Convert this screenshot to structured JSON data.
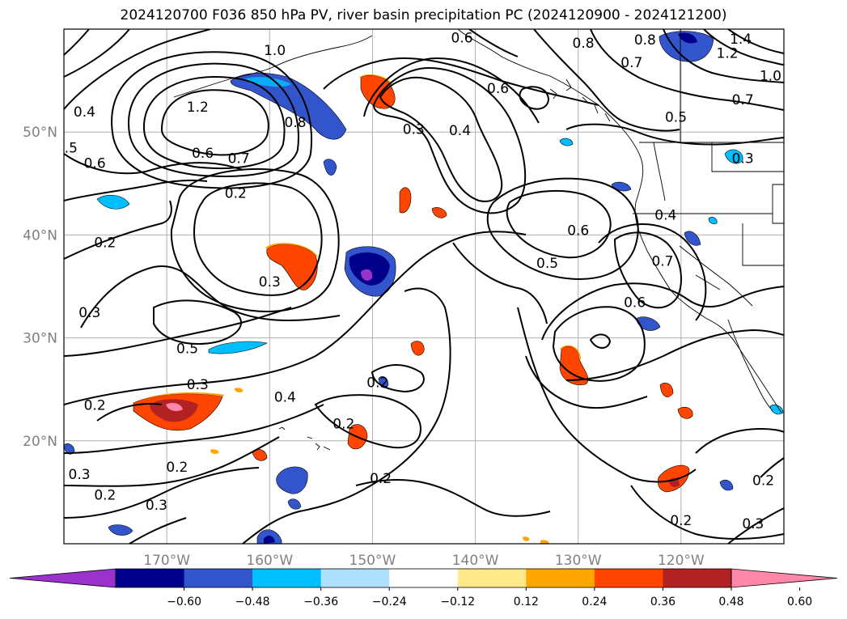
{
  "title": "2024120700 F036 850 hPa PV, river basin precipitation PC (2024120900 - 2024121200)",
  "map": {
    "lon_range": [
      -180,
      -110
    ],
    "lat_range": [
      10,
      60
    ],
    "lat_ticks": [
      {
        "value": 50,
        "label": "50°N"
      },
      {
        "value": 40,
        "label": "40°N"
      },
      {
        "value": 30,
        "label": "30°N"
      },
      {
        "value": 20,
        "label": "20°N"
      }
    ],
    "lon_ticks": [
      {
        "value": -170,
        "label": "170°W"
      },
      {
        "value": -160,
        "label": "160°W"
      },
      {
        "value": -150,
        "label": "150°W"
      },
      {
        "value": -140,
        "label": "140°W"
      },
      {
        "value": -130,
        "label": "130°W"
      },
      {
        "value": -120,
        "label": "120°W"
      }
    ],
    "grid": true
  },
  "contour_labels": [
    {
      "text": "1.0",
      "lon": -159.5,
      "lat": 57.5
    },
    {
      "text": "1.2",
      "lon": -167,
      "lat": 52.0
    },
    {
      "text": "0.8",
      "lon": -157.5,
      "lat": 50.5
    },
    {
      "text": "0.4",
      "lon": -178,
      "lat": 51.5
    },
    {
      "text": ".5",
      "lon": -179.3,
      "lat": 48.0
    },
    {
      "text": "0.6",
      "lon": -177,
      "lat": 46.5
    },
    {
      "text": "0.6",
      "lon": -166.5,
      "lat": 47.5
    },
    {
      "text": "0.7",
      "lon": -163,
      "lat": 47.0
    },
    {
      "text": "0.2",
      "lon": -163.3,
      "lat": 43.6
    },
    {
      "text": "0.2",
      "lon": -176,
      "lat": 38.8
    },
    {
      "text": "0.3",
      "lon": -177.5,
      "lat": 32.0
    },
    {
      "text": "0.3",
      "lon": -160,
      "lat": 35.0
    },
    {
      "text": "0.5",
      "lon": -168,
      "lat": 28.5
    },
    {
      "text": "0.3",
      "lon": -167,
      "lat": 25.0
    },
    {
      "text": "0.2",
      "lon": -177,
      "lat": 23.0
    },
    {
      "text": "0.4",
      "lon": -158.5,
      "lat": 23.8
    },
    {
      "text": "0.2",
      "lon": -149.5,
      "lat": 25.2
    },
    {
      "text": "0.2",
      "lon": -152.8,
      "lat": 21.2
    },
    {
      "text": "0.2",
      "lon": -169,
      "lat": 17.0
    },
    {
      "text": "0.3",
      "lon": -178.5,
      "lat": 16.3
    },
    {
      "text": "0.2",
      "lon": -176,
      "lat": 14.3
    },
    {
      "text": "0.3",
      "lon": -171,
      "lat": 13.3
    },
    {
      "text": "0.2",
      "lon": -149.2,
      "lat": 15.9
    },
    {
      "text": "0.3",
      "lon": -146,
      "lat": 49.8
    },
    {
      "text": "0.4",
      "lon": -141.5,
      "lat": 49.7
    },
    {
      "text": "0.6",
      "lon": -141.3,
      "lat": 58.7
    },
    {
      "text": "0.6",
      "lon": -137.8,
      "lat": 53.8
    },
    {
      "text": "0.8",
      "lon": -129.5,
      "lat": 58.2
    },
    {
      "text": "0.6",
      "lon": -130,
      "lat": 40.0
    },
    {
      "text": "0.5",
      "lon": -133,
      "lat": 36.8
    },
    {
      "text": "0.8",
      "lon": -123.5,
      "lat": 58.5
    },
    {
      "text": "0.7",
      "lon": -124.8,
      "lat": 56.3
    },
    {
      "text": "1.2",
      "lon": -115.5,
      "lat": 57.2
    },
    {
      "text": "1.4",
      "lon": -114.2,
      "lat": 58.6
    },
    {
      "text": "1.0",
      "lon": -111.3,
      "lat": 55.0
    },
    {
      "text": "0.7",
      "lon": -114,
      "lat": 52.7
    },
    {
      "text": "0.5",
      "lon": -120.5,
      "lat": 51.0
    },
    {
      "text": "0.3",
      "lon": -114,
      "lat": 47.0
    },
    {
      "text": "0.4",
      "lon": -121.5,
      "lat": 41.5
    },
    {
      "text": "0.7",
      "lon": -121.8,
      "lat": 37.0
    },
    {
      "text": "0.6",
      "lon": -124.5,
      "lat": 33.0
    },
    {
      "text": "0.2",
      "lon": -120,
      "lat": 11.8
    },
    {
      "text": "0.3",
      "lon": -113,
      "lat": 11.5
    },
    {
      "text": "0.2",
      "lon": -112,
      "lat": 15.7
    }
  ],
  "colorbar": {
    "ticks": [
      "−0.60",
      "−0.48",
      "−0.36",
      "−0.24",
      "−0.12",
      "0.12",
      "0.24",
      "0.36",
      "0.48",
      "0.60"
    ],
    "colors": [
      "#9933cc",
      "#00008b",
      "#3355cc",
      "#00bfff",
      "#b0e0ff",
      "#ffffff",
      "#ffe98a",
      "#ffa500",
      "#ff4500",
      "#b22222",
      "#ff88aa"
    ]
  }
}
